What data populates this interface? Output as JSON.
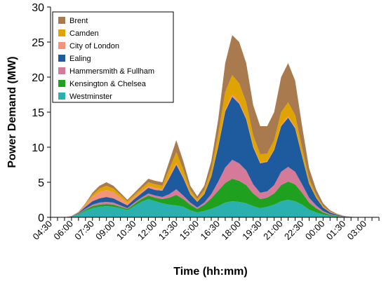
{
  "chart_data": {
    "type": "stacked_area",
    "x_label": "Time (hh:mm)",
    "y_label": "Power Demand (MW)",
    "categories": [
      "04:30",
      null,
      null,
      "06:00",
      null,
      null,
      "07:30",
      null,
      null,
      "09:00",
      null,
      null,
      "10:30",
      null,
      null,
      "12:00",
      null,
      null,
      "13:30",
      null,
      null,
      "15:00",
      null,
      null,
      "16:30",
      null,
      null,
      "18:00",
      null,
      null,
      "19:30",
      null,
      null,
      "21:00",
      null,
      null,
      "22:30",
      null,
      null,
      "00:00",
      null,
      null,
      "01:30",
      null,
      null,
      "03:00",
      null,
      null
    ],
    "ylim": [
      0,
      30
    ],
    "yticks": [
      0,
      5,
      10,
      15,
      20,
      25,
      30
    ],
    "legend": "top-left",
    "series": [
      {
        "name": "Westminster",
        "color": "#2bb0b0",
        "values": [
          0,
          0,
          0,
          0.1,
          0.4,
          0.9,
          1.3,
          1.5,
          1.6,
          1.5,
          1.3,
          1.0,
          1.6,
          2.2,
          2.6,
          2.3,
          2.0,
          1.8,
          1.7,
          1.5,
          1.0,
          0.7,
          0.9,
          1.2,
          1.6,
          2.1,
          2.3,
          2.2,
          2.0,
          1.6,
          1.3,
          1.5,
          1.8,
          2.3,
          2.5,
          2.3,
          1.8,
          1.1,
          0.7,
          0.4,
          0.2,
          0.1,
          0.05,
          0.02,
          0,
          0,
          0,
          0
        ]
      },
      {
        "name": "Kensington & Chelsea",
        "color": "#1fa01f",
        "values": [
          0,
          0,
          0,
          0,
          0.1,
          0.2,
          0.3,
          0.3,
          0.3,
          0.3,
          0.2,
          0.2,
          0.3,
          0.4,
          0.5,
          0.5,
          0.6,
          1.0,
          1.5,
          1.1,
          0.8,
          0.5,
          0.9,
          1.5,
          2.2,
          2.8,
          3.2,
          3.0,
          2.6,
          1.8,
          1.3,
          1.3,
          1.6,
          2.3,
          2.6,
          2.4,
          1.7,
          1.0,
          0.6,
          0.3,
          0.15,
          0.08,
          0.03,
          0.01,
          0,
          0,
          0,
          0
        ]
      },
      {
        "name": "Hammersmith & Fullham",
        "color": "#d67a9a",
        "values": [
          0,
          0,
          0,
          0,
          0.05,
          0.1,
          0.2,
          0.3,
          0.3,
          0.3,
          0.2,
          0.1,
          0.2,
          0.2,
          0.3,
          0.3,
          0.3,
          0.5,
          0.8,
          0.5,
          0.3,
          0.2,
          0.3,
          0.6,
          1.3,
          2.2,
          2.7,
          2.5,
          2.1,
          1.3,
          0.9,
          0.9,
          1.2,
          1.9,
          2.1,
          1.8,
          1.2,
          0.7,
          0.4,
          0.2,
          0.1,
          0.05,
          0.02,
          0.01,
          0,
          0,
          0,
          0
        ]
      },
      {
        "name": "Ealing",
        "color": "#1d5a9e",
        "values": [
          0,
          0,
          0,
          0.05,
          0.1,
          0.3,
          0.5,
          0.6,
          0.7,
          0.6,
          0.5,
          0.4,
          0.5,
          0.6,
          0.8,
          0.8,
          0.9,
          2.3,
          3.5,
          2.5,
          1.2,
          0.8,
          1.2,
          2.5,
          5.0,
          8.0,
          9.0,
          8.5,
          7.3,
          5.3,
          4.2,
          4.2,
          5.0,
          6.5,
          7.0,
          6.2,
          4.0,
          2.0,
          1.1,
          0.5,
          0.25,
          0.12,
          0.05,
          0.02,
          0,
          0,
          0,
          0
        ]
      },
      {
        "name": "City of London",
        "color": "#f4937b",
        "values": [
          0,
          0,
          0,
          0.05,
          0.1,
          0.3,
          0.6,
          0.9,
          1.0,
          0.9,
          0.6,
          0.3,
          0.3,
          0.3,
          0.3,
          0.3,
          0.2,
          0.3,
          0.3,
          0.2,
          0.1,
          0.1,
          0.1,
          0.1,
          0.2,
          0.3,
          0.3,
          0.3,
          0.2,
          0.2,
          0.1,
          0.1,
          0.1,
          0.2,
          0.2,
          0.2,
          0.1,
          0.1,
          0.05,
          0.05,
          0.05,
          0.02,
          0.01,
          0,
          0,
          0,
          0,
          0
        ]
      },
      {
        "name": "Camden",
        "color": "#e0a400",
        "values": [
          0,
          0,
          0,
          0,
          0.05,
          0.1,
          0.3,
          0.5,
          0.6,
          0.5,
          0.4,
          0.3,
          0.3,
          0.4,
          0.5,
          0.5,
          0.5,
          1.0,
          1.5,
          1.0,
          0.5,
          0.3,
          0.5,
          0.9,
          1.6,
          2.5,
          2.8,
          2.6,
          2.2,
          1.5,
          1.2,
          1.1,
          1.3,
          1.8,
          2.0,
          1.7,
          1.1,
          0.6,
          0.35,
          0.15,
          0.05,
          0.03,
          0.01,
          0,
          0,
          0,
          0,
          0
        ]
      },
      {
        "name": "Brent",
        "color": "#a97a4e",
        "values": [
          0,
          0,
          0,
          0,
          0,
          0.1,
          0.3,
          0.4,
          0.5,
          0.4,
          0.3,
          0.2,
          0.3,
          0.4,
          0.5,
          0.5,
          0.5,
          1.1,
          1.7,
          1.2,
          0.6,
          0.4,
          0.6,
          1.2,
          2.1,
          4.1,
          5.7,
          5.9,
          5.6,
          4.3,
          4.0,
          3.9,
          4.0,
          5.0,
          5.6,
          4.9,
          3.1,
          1.5,
          0.8,
          0.4,
          0.2,
          0.1,
          0.03,
          0.02,
          0,
          0,
          0,
          0
        ]
      }
    ]
  }
}
